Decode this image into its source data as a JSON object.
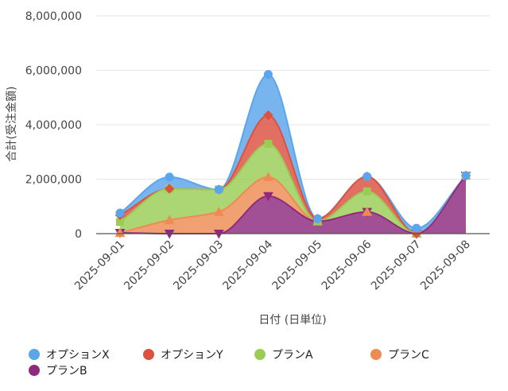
{
  "chart_data": {
    "type": "area",
    "stacked": true,
    "smooth": true,
    "xlabel": "日付 (日単位)",
    "ylabel": "合計(受注金額)",
    "ylim": [
      0,
      8000000
    ],
    "yticks": [
      "0",
      "2,000,000",
      "4,000,000",
      "6,000,000",
      "8,000,000"
    ],
    "ytick_values": [
      0,
      2000000,
      4000000,
      6000000,
      8000000
    ],
    "categories": [
      "2025-09-01",
      "2025-09-02",
      "2025-09-03",
      "2025-09-04",
      "2025-09-05",
      "2025-09-06",
      "2025-09-07",
      "2025-09-08"
    ],
    "grid": true,
    "legend_position": "bottom",
    "series": [
      {
        "name": "プランB",
        "color": "#8e2a7e",
        "marker": "triangle-down",
        "values": [
          30000,
          0,
          0,
          1380000,
          450000,
          800000,
          0,
          2130000
        ]
      },
      {
        "name": "プランC",
        "color": "#ee8b52",
        "marker": "triangle-up",
        "values": [
          0,
          500000,
          800000,
          700000,
          0,
          0,
          0,
          0
        ]
      },
      {
        "name": "プランA",
        "color": "#9acd55",
        "marker": "square",
        "values": [
          400000,
          1150000,
          820000,
          1220000,
          0,
          750000,
          0,
          0
        ]
      },
      {
        "name": "オプションY",
        "color": "#dc5140",
        "marker": "diamond",
        "values": [
          250000,
          0,
          0,
          1050000,
          100000,
          550000,
          0,
          0
        ]
      },
      {
        "name": "オプションX",
        "color": "#5aa5ec",
        "marker": "circle",
        "values": [
          80000,
          430000,
          0,
          1500000,
          0,
          0,
          200000,
          0
        ]
      }
    ],
    "legend_order": [
      "オプションX",
      "オプションY",
      "プランA",
      "プランC",
      "プランB"
    ]
  }
}
